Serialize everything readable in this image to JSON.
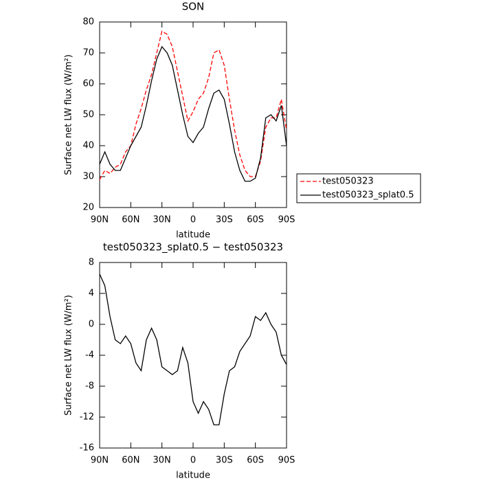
{
  "chart_data": [
    {
      "type": "line",
      "title": "SON",
      "xlabel": "latitude",
      "ylabel": "Surface net LW flux (W/m²)",
      "x": [
        90,
        85,
        80,
        75,
        70,
        65,
        60,
        55,
        50,
        45,
        40,
        35,
        30,
        25,
        20,
        15,
        10,
        5,
        0,
        -5,
        -10,
        -15,
        -20,
        -25,
        -30,
        -35,
        -40,
        -45,
        -50,
        -55,
        -60,
        -65,
        -70,
        -75,
        -80,
        -85,
        -90
      ],
      "xlim": [
        90,
        -90
      ],
      "xticks": [
        {
          "value": 90,
          "label": "90N"
        },
        {
          "value": 60,
          "label": "60N"
        },
        {
          "value": 30,
          "label": "30N"
        },
        0,
        {
          "value": -30,
          "label": "30S"
        },
        {
          "value": -60,
          "label": "60S"
        },
        {
          "value": -90,
          "label": "90S"
        }
      ],
      "ylim": [
        20,
        80
      ],
      "yticks": [
        20,
        30,
        40,
        50,
        60,
        70,
        80
      ],
      "legend": "right",
      "series": [
        {
          "name": "test050323",
          "color": "#ff0000",
          "line_style": "dashed",
          "values": [
            29,
            32,
            31,
            33,
            34,
            38,
            40,
            47,
            52,
            58,
            63,
            70,
            77,
            76,
            72,
            64,
            56,
            48,
            51,
            55,
            57,
            62,
            70,
            71,
            66,
            55,
            45,
            37,
            32,
            30,
            30,
            35,
            46,
            49,
            49,
            55,
            45
          ]
        },
        {
          "name": "test050323_splat0.5",
          "color": "#000000",
          "line_style": "solid",
          "values": [
            34,
            38,
            34,
            32,
            32,
            36,
            40,
            43,
            46,
            53,
            61,
            68,
            72,
            70,
            66,
            58,
            50,
            43,
            41,
            44,
            46,
            52,
            57,
            58,
            55,
            47,
            38,
            32,
            28.5,
            28.5,
            29.5,
            36,
            49,
            50,
            48,
            53,
            40
          ]
        }
      ]
    },
    {
      "type": "line",
      "title": "test050323_splat0.5 − test050323",
      "xlabel": "latitude",
      "ylabel": "Surface net LW flux (W/m²)",
      "x": [
        90,
        85,
        80,
        75,
        70,
        65,
        60,
        55,
        50,
        45,
        40,
        35,
        30,
        25,
        20,
        15,
        10,
        5,
        0,
        -5,
        -10,
        -15,
        -20,
        -25,
        -30,
        -35,
        -40,
        -45,
        -50,
        -55,
        -60,
        -65,
        -70,
        -75,
        -80,
        -85,
        -90
      ],
      "xlim": [
        90,
        -90
      ],
      "xticks": [
        {
          "value": 90,
          "label": "90N"
        },
        {
          "value": 60,
          "label": "60N"
        },
        {
          "value": 30,
          "label": "30N"
        },
        0,
        {
          "value": -30,
          "label": "30S"
        },
        {
          "value": -60,
          "label": "60S"
        },
        {
          "value": -90,
          "label": "90S"
        }
      ],
      "ylim": [
        -16,
        8
      ],
      "yticks": [
        -16,
        -12,
        -8,
        -4,
        0,
        4,
        8
      ],
      "series": [
        {
          "color": "#000000",
          "line_style": "solid",
          "values": [
            6.5,
            5,
            1,
            -2,
            -2.5,
            -1.5,
            -2.5,
            -5,
            -6,
            -2,
            -0.5,
            -2,
            -5.5,
            -6,
            -6.5,
            -6,
            -3,
            -5,
            -10,
            -11.5,
            -10,
            -11,
            -13,
            -13,
            -9,
            -6,
            -5.5,
            -3.5,
            -2.5,
            -1.5,
            1,
            0.5,
            1.5,
            0,
            -1,
            -4,
            -5.2
          ]
        }
      ]
    }
  ]
}
